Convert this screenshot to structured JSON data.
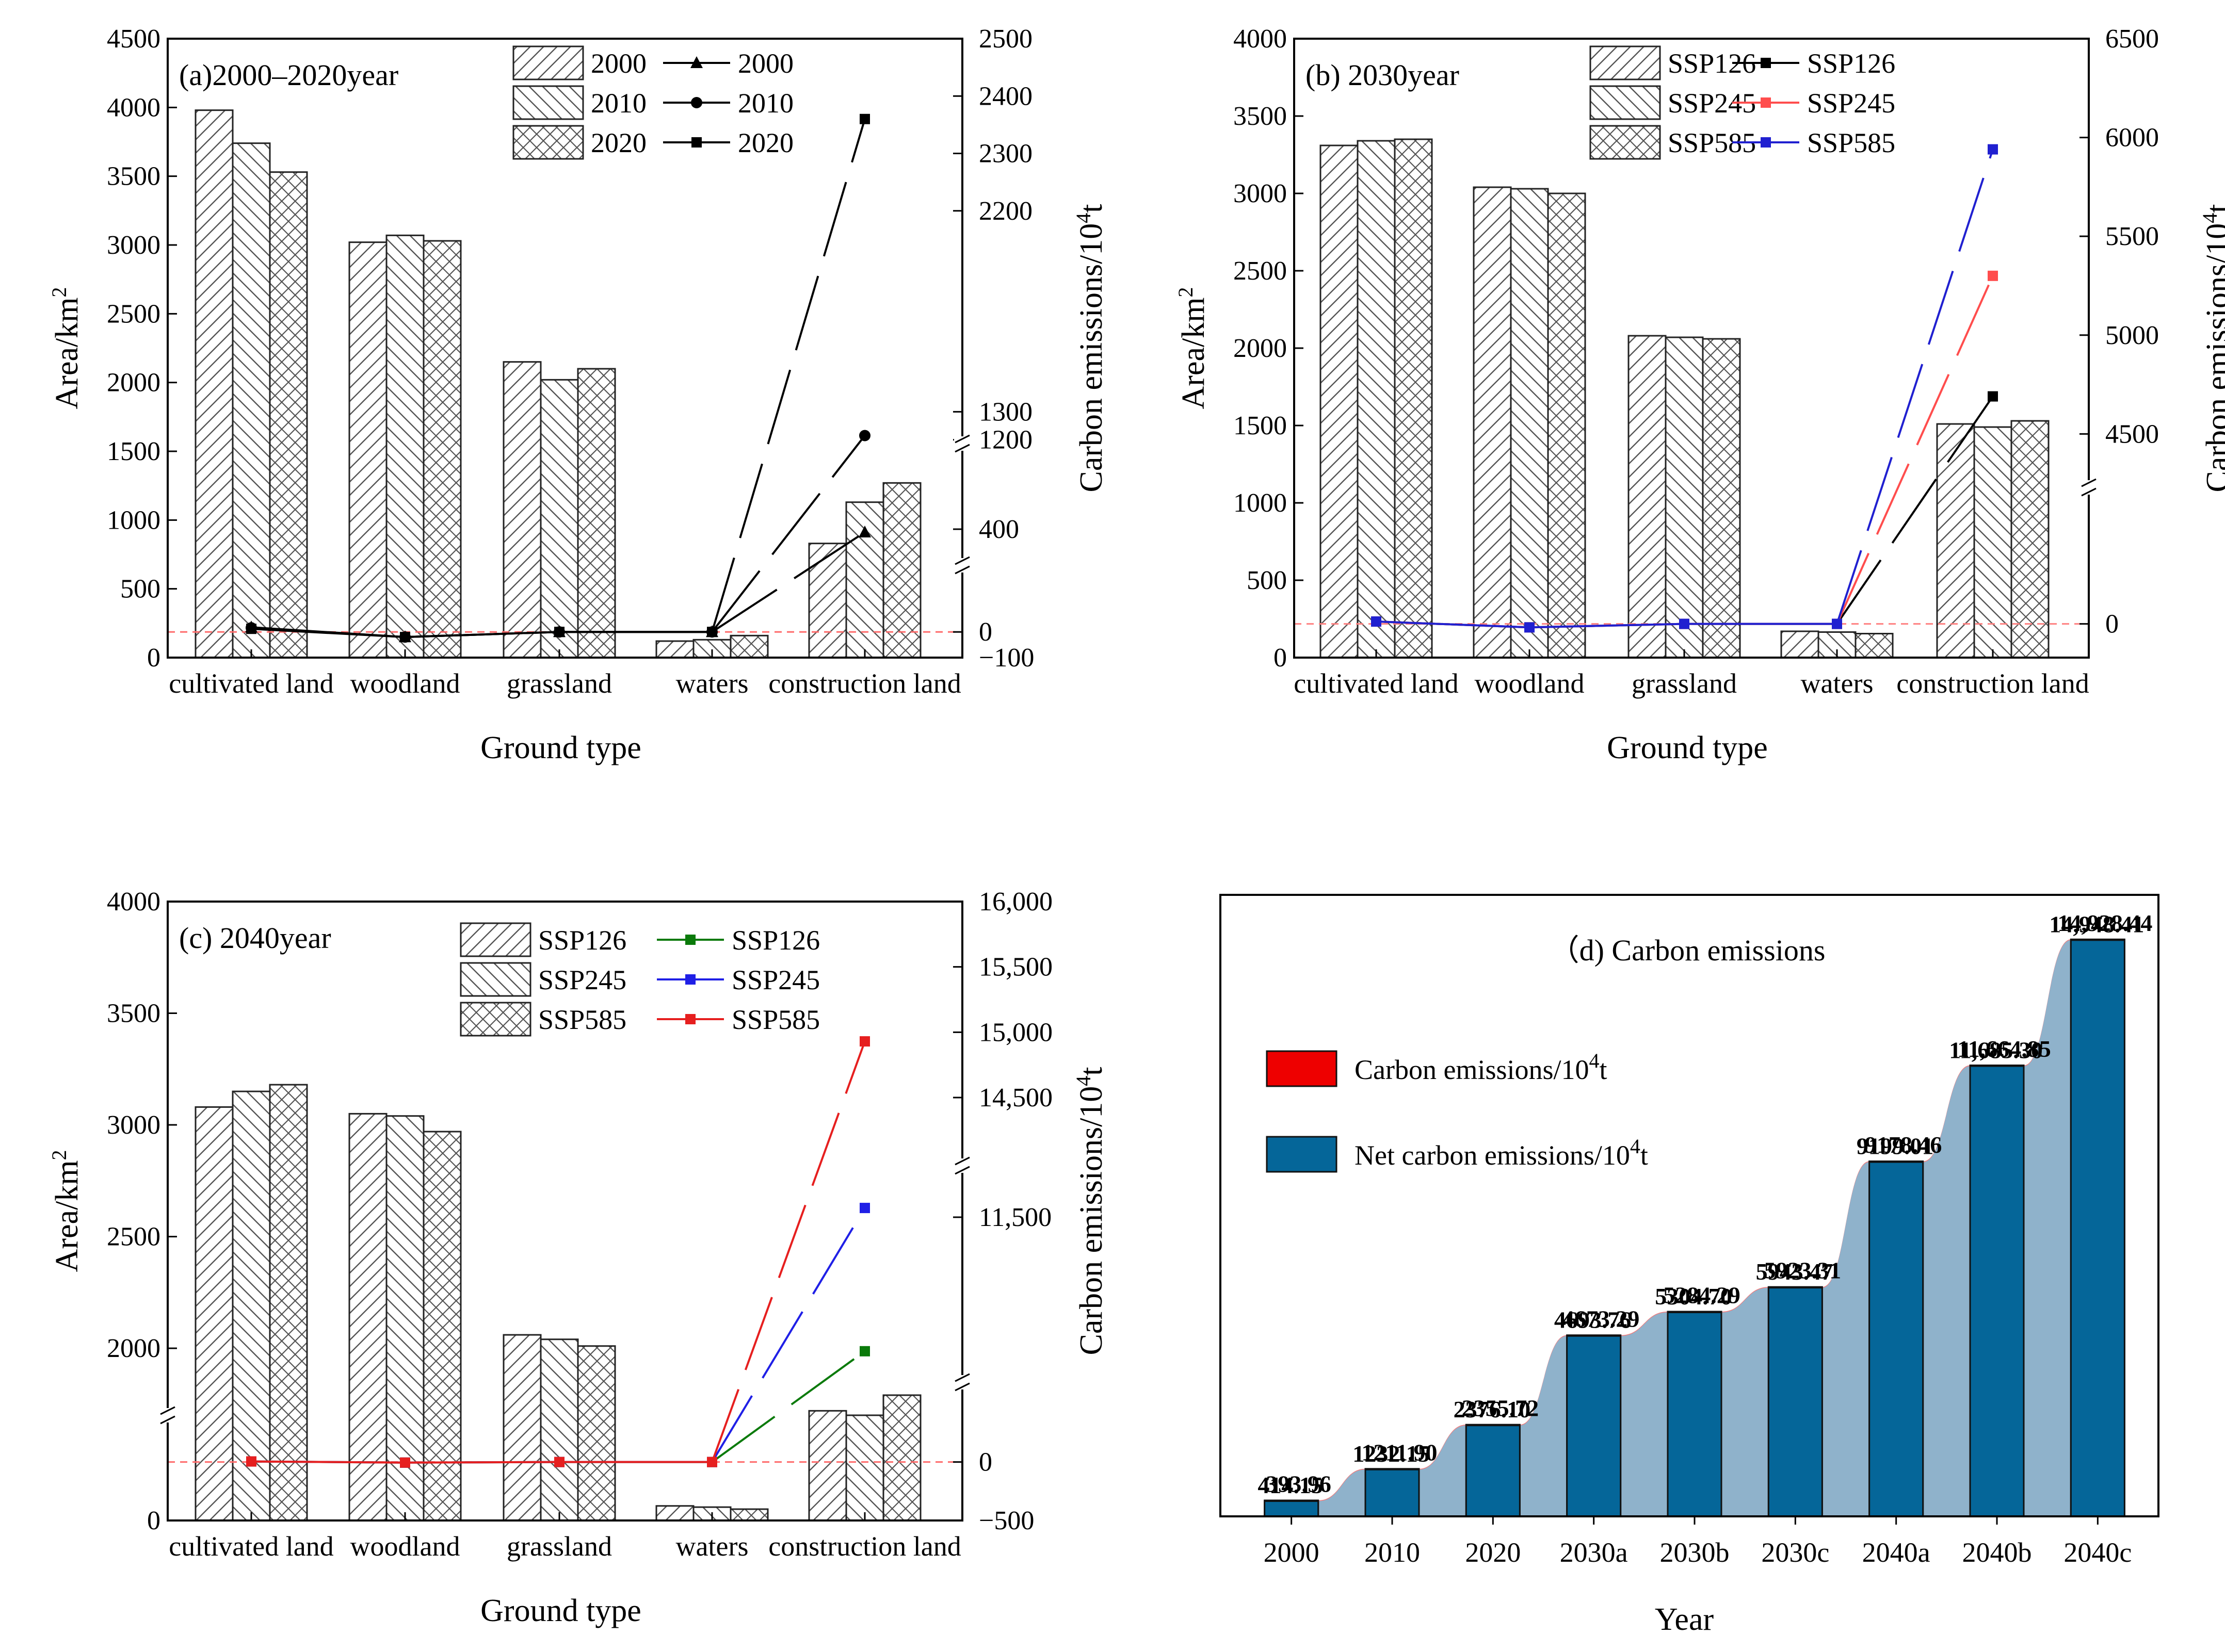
{
  "chart_data": [
    {
      "id": "a",
      "type": "bar+line",
      "title": "(a)2000–2020year",
      "xlabel": "Ground type",
      "ylabel": "Area/km",
      "ylabel_sup": "2",
      "y2label": "Carbon emissions/10",
      "y2label_sup": "4",
      "y2label_suffix": "t",
      "categories": [
        "cultivated land",
        "woodland",
        "grassland",
        "waters",
        "construction land"
      ],
      "ylim": [
        0,
        4500
      ],
      "yticks": [
        "0",
        "500",
        "1000",
        "1500",
        "2000",
        "2500",
        "3000",
        "3500",
        "4000",
        "4500"
      ],
      "y2_segments": [
        {
          "range": [
            -100,
            400
          ],
          "ticks": [
            -100,
            0,
            400
          ],
          "tick_labels": [
            "−100",
            "0",
            "400"
          ]
        },
        {
          "range": [
            1100,
            1400
          ],
          "ticks": [
            1200,
            1300
          ],
          "tick_labels": [
            "1200",
            "1300"
          ]
        },
        {
          "range": [
            2100,
            2500
          ],
          "ticks": [
            2200,
            2300,
            2400,
            2500
          ],
          "tick_labels": [
            "2200",
            "2300",
            "2400",
            "2500"
          ]
        }
      ],
      "bar_series": [
        {
          "name": "2000",
          "pattern": "diag-right",
          "values": [
            3980,
            3020,
            2150,
            120,
            830
          ]
        },
        {
          "name": "2010",
          "pattern": "diag-left",
          "values": [
            3740,
            3070,
            2020,
            130,
            1130
          ]
        },
        {
          "name": "2020",
          "pattern": "cross",
          "values": [
            3530,
            3030,
            2100,
            160,
            1270
          ]
        }
      ],
      "line_series": [
        {
          "name": "2000",
          "marker": "triangle",
          "color": "#000000",
          "values": [
            18,
            -20,
            0,
            0,
            388
          ]
        },
        {
          "name": "2010",
          "marker": "circle",
          "color": "#000000",
          "values": [
            16,
            -20,
            0,
            0,
            1215
          ]
        },
        {
          "name": "2020",
          "marker": "square",
          "color": "#000000",
          "values": [
            12,
            -20,
            0,
            0,
            2360
          ]
        }
      ],
      "zero_line_color": "#ff6b6b"
    },
    {
      "id": "b",
      "type": "bar+line",
      "title": "(b) 2030year",
      "xlabel": "Ground type",
      "ylabel": "Area/km",
      "ylabel_sup": "2",
      "y2label": "Carbon emissions/10",
      "y2label_sup": "4",
      "y2label_suffix": "t",
      "categories": [
        "cultivated land",
        "woodland",
        "grassland",
        "waters",
        "construction land"
      ],
      "ylim": [
        0,
        4000
      ],
      "yticks": [
        "0",
        "500",
        "1000",
        "1500",
        "2000",
        "2500",
        "3000",
        "3500",
        "4000"
      ],
      "y2_segments": [
        {
          "range": [
            -100,
            400
          ],
          "ticks": [
            0
          ],
          "tick_labels": [
            "0"
          ]
        },
        {
          "range": [
            4300,
            6500
          ],
          "ticks": [
            4500,
            5000,
            5500,
            6000,
            6500
          ],
          "tick_labels": [
            "4500",
            "5000",
            "5500",
            "6000",
            "6500"
          ]
        }
      ],
      "bar_series": [
        {
          "name": "SSP126",
          "pattern": "diag-right",
          "values": [
            3310,
            3040,
            2080,
            170,
            1510
          ]
        },
        {
          "name": "SSP245",
          "pattern": "diag-left",
          "values": [
            3340,
            3030,
            2070,
            165,
            1490
          ]
        },
        {
          "name": "SSP585",
          "pattern": "cross",
          "values": [
            3350,
            3000,
            2060,
            155,
            1530
          ]
        }
      ],
      "line_series": [
        {
          "name": "SSP126",
          "marker": "square",
          "color": "#000000",
          "values": [
            10,
            -15,
            0,
            0,
            4690
          ]
        },
        {
          "name": "SSP245",
          "marker": "square",
          "color": "#ff4d4d",
          "values": [
            10,
            -15,
            0,
            0,
            5300
          ]
        },
        {
          "name": "SSP585",
          "marker": "square",
          "color": "#2020d0",
          "values": [
            10,
            -15,
            0,
            0,
            5940
          ]
        }
      ],
      "zero_line_color": "#ff8080"
    },
    {
      "id": "c",
      "type": "bar+line",
      "title": "(c) 2040year",
      "xlabel": "Ground type",
      "ylabel": "Area/km",
      "ylabel_sup": "2",
      "y2label": "Carbon emissions/10",
      "y2label_sup": "4",
      "y2label_suffix": "t",
      "categories": [
        "cultivated land",
        "woodland",
        "grassland",
        "waters",
        "construction land"
      ],
      "ylim": [
        0,
        4000
      ],
      "yticks": [
        "0",
        "2000",
        "2500",
        "3000",
        "3500",
        "4000"
      ],
      "y2_segments": [
        {
          "range": [
            -500,
            400
          ],
          "ticks": [
            -500,
            0
          ],
          "tick_labels": [
            "−500",
            "0"
          ]
        },
        {
          "range": [
            9000,
            12500
          ],
          "ticks": [
            11500
          ],
          "tick_labels": [
            "11,500"
          ]
        },
        {
          "range": [
            14200,
            16000
          ],
          "ticks": [
            14500,
            15000,
            15500,
            16000
          ],
          "tick_labels": [
            "14,500",
            "15,000",
            "15,500",
            "16,000"
          ]
        }
      ],
      "bar_series": [
        {
          "name": "SSP126",
          "pattern": "diag-right",
          "values": [
            3080,
            3050,
            2060,
            180,
            1720
          ]
        },
        {
          "name": "SSP245",
          "pattern": "diag-left",
          "values": [
            3150,
            3040,
            2040,
            165,
            1700
          ]
        },
        {
          "name": "SSP585",
          "pattern": "cross",
          "values": [
            3180,
            2970,
            2010,
            140,
            1790
          ]
        }
      ],
      "line_series": [
        {
          "name": "SSP126",
          "marker": "square",
          "color": "#0a7a0a",
          "values": [
            5,
            -5,
            0,
            0,
            9180
          ]
        },
        {
          "name": "SSP245",
          "marker": "square",
          "color": "#1f1fe6",
          "values": [
            5,
            -5,
            0,
            0,
            11660
          ]
        },
        {
          "name": "SSP585",
          "marker": "square",
          "color": "#e61f1f",
          "values": [
            5,
            -5,
            0,
            0,
            14930
          ]
        }
      ],
      "zero_line_color": "#ff6b6b"
    },
    {
      "id": "d",
      "type": "bar",
      "title": "（d) Carbon emissions",
      "xlabel": "Year",
      "categories": [
        "2000",
        "2010",
        "2020",
        "2030a",
        "2030b",
        "2030c",
        "2040a",
        "2040b",
        "2040c"
      ],
      "ylim": [
        0,
        15500
      ],
      "series": [
        {
          "name": "Carbon emissions/10",
          "sup": "4",
          "suffix": "t",
          "color": "#ee0000",
          "area_color": "#f47a7a",
          "values": [
            414.15,
            1232.15,
            2376.1,
            4693.76,
            5304.7,
            5943.47,
            9199.01,
            11685.3,
            14948.41
          ],
          "labels": [
            "414.15",
            "1232.15",
            "2376.10",
            "4693.76",
            "5304.70",
            "5943.47",
            "9199.01",
            "11,685.30",
            "14,948.41"
          ]
        },
        {
          "name": "Net carbon emissions/10",
          "sup": "4",
          "suffix": "t",
          "color": "#056699",
          "area_color": "#8fb2cb",
          "values": [
            393.96,
            1211.9,
            2355.72,
            4673.29,
            5284.29,
            5923.31,
            9178.46,
            11664.85,
            14928.44
          ],
          "labels": [
            "393.96",
            "1211.90",
            "2355.72",
            "4673.29",
            "5284.29",
            "5923.31",
            "9178.46",
            "11,664.85",
            "14,928.44"
          ]
        }
      ]
    }
  ]
}
